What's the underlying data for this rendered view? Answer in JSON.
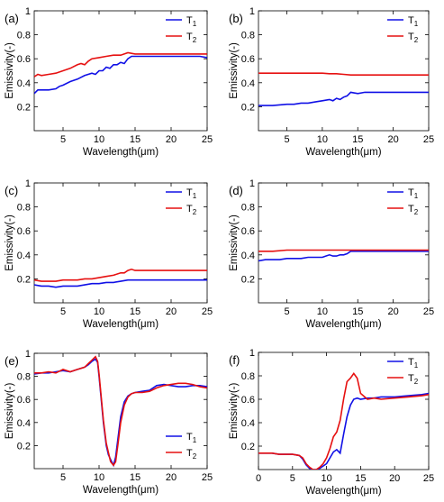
{
  "figure": {
    "x_label": "Wavelength(μm)",
    "y_label": "Emissivity(-)"
  },
  "colors": {
    "T1": "#1010e6",
    "T2": "#e61010"
  },
  "chart_data": [
    {
      "panel": "(a)",
      "type": "line",
      "xlim": [
        1,
        25
      ],
      "ylim": [
        0,
        1
      ],
      "xticks": [
        5,
        10,
        15,
        20,
        25
      ],
      "yticks": [
        0.2,
        0.4,
        0.6,
        0.8,
        1
      ],
      "xlabel": "Wavelength(μm)",
      "ylabel": "Emissivity(-)",
      "legend": "top-right",
      "series": [
        {
          "name": "T",
          "sub": "1",
          "color": "#1010e6",
          "x": [
            1,
            1.5,
            2,
            3,
            4,
            4.5,
            5,
            6,
            7,
            8,
            9,
            9.5,
            10,
            10.5,
            11,
            11.5,
            12,
            12.5,
            13,
            13.5,
            14,
            14.5,
            15,
            16,
            18,
            20,
            22,
            24,
            25
          ],
          "y": [
            0.31,
            0.34,
            0.34,
            0.34,
            0.35,
            0.37,
            0.38,
            0.41,
            0.43,
            0.46,
            0.48,
            0.47,
            0.5,
            0.5,
            0.53,
            0.52,
            0.55,
            0.55,
            0.57,
            0.56,
            0.6,
            0.62,
            0.62,
            0.62,
            0.62,
            0.62,
            0.62,
            0.62,
            0.61
          ]
        },
        {
          "name": "T",
          "sub": "2",
          "color": "#e61010",
          "x": [
            1,
            1.5,
            2,
            3,
            4,
            5,
            6,
            7,
            7.5,
            8,
            8.5,
            9,
            10,
            11,
            12,
            13,
            14,
            15,
            16,
            18,
            20,
            22,
            24,
            25
          ],
          "y": [
            0.45,
            0.47,
            0.46,
            0.47,
            0.48,
            0.5,
            0.52,
            0.55,
            0.56,
            0.55,
            0.58,
            0.6,
            0.61,
            0.62,
            0.63,
            0.63,
            0.65,
            0.64,
            0.64,
            0.64,
            0.64,
            0.64,
            0.64,
            0.64
          ]
        }
      ]
    },
    {
      "panel": "(b)",
      "type": "line",
      "xlim": [
        1,
        25
      ],
      "ylim": [
        0,
        1
      ],
      "xticks": [
        5,
        10,
        15,
        20,
        25
      ],
      "yticks": [
        0.2,
        0.4,
        0.6,
        0.8,
        1
      ],
      "xlabel": "Wavelength(μm)",
      "ylabel": "Emissivity(-)",
      "legend": "top-right",
      "series": [
        {
          "name": "T",
          "sub": "1",
          "color": "#1010e6",
          "x": [
            1,
            3,
            5,
            6,
            7,
            8,
            9,
            10,
            11,
            11.5,
            12,
            12.5,
            13,
            13.5,
            14,
            15,
            16,
            18,
            20,
            22,
            25
          ],
          "y": [
            0.21,
            0.21,
            0.22,
            0.22,
            0.23,
            0.23,
            0.24,
            0.25,
            0.26,
            0.25,
            0.27,
            0.26,
            0.28,
            0.29,
            0.32,
            0.31,
            0.32,
            0.32,
            0.32,
            0.32,
            0.32
          ]
        },
        {
          "name": "T",
          "sub": "2",
          "color": "#e61010",
          "x": [
            1,
            3,
            5,
            7,
            9,
            10,
            11,
            12,
            13,
            14,
            15,
            16,
            18,
            20,
            22,
            25
          ],
          "y": [
            0.48,
            0.48,
            0.48,
            0.48,
            0.48,
            0.48,
            0.475,
            0.475,
            0.47,
            0.465,
            0.465,
            0.465,
            0.465,
            0.465,
            0.465,
            0.465
          ]
        }
      ]
    },
    {
      "panel": "(c)",
      "type": "line",
      "xlim": [
        1,
        25
      ],
      "ylim": [
        0,
        1
      ],
      "xticks": [
        5,
        10,
        15,
        20,
        25
      ],
      "yticks": [
        0.2,
        0.4,
        0.6,
        0.8,
        1
      ],
      "xlabel": "Wavelength(μm)",
      "ylabel": "Emissivity(-)",
      "legend": "top-right",
      "series": [
        {
          "name": "T",
          "sub": "1",
          "color": "#1010e6",
          "x": [
            1,
            2,
            3,
            4,
            5,
            6,
            7,
            8,
            9,
            10,
            11,
            12,
            13,
            14,
            15,
            16,
            18,
            20,
            22,
            25
          ],
          "y": [
            0.15,
            0.14,
            0.14,
            0.13,
            0.14,
            0.14,
            0.14,
            0.15,
            0.16,
            0.16,
            0.17,
            0.17,
            0.18,
            0.19,
            0.19,
            0.19,
            0.19,
            0.19,
            0.19,
            0.19
          ]
        },
        {
          "name": "T",
          "sub": "2",
          "color": "#e61010",
          "x": [
            1,
            2,
            3,
            4,
            5,
            6,
            7,
            8,
            9,
            10,
            11,
            12,
            13,
            13.5,
            14,
            14.5,
            15,
            16,
            18,
            20,
            22,
            25
          ],
          "y": [
            0.19,
            0.18,
            0.18,
            0.18,
            0.19,
            0.19,
            0.19,
            0.2,
            0.2,
            0.21,
            0.22,
            0.23,
            0.25,
            0.25,
            0.27,
            0.28,
            0.27,
            0.27,
            0.27,
            0.27,
            0.27,
            0.27
          ]
        }
      ]
    },
    {
      "panel": "(d)",
      "type": "line",
      "xlim": [
        1,
        25
      ],
      "ylim": [
        0,
        1
      ],
      "xticks": [
        5,
        10,
        15,
        20,
        25
      ],
      "yticks": [
        0.2,
        0.4,
        0.6,
        0.8,
        1
      ],
      "xlabel": "Wavelength(μm)",
      "ylabel": "Emissivity(-)",
      "legend": "top-right",
      "series": [
        {
          "name": "T",
          "sub": "1",
          "color": "#1010e6",
          "x": [
            1,
            2,
            3,
            4,
            5,
            6,
            7,
            8,
            9,
            10,
            10.5,
            11,
            11.5,
            12,
            12.5,
            13,
            13.5,
            14,
            15,
            16,
            18,
            20,
            22,
            25
          ],
          "y": [
            0.35,
            0.36,
            0.36,
            0.36,
            0.37,
            0.37,
            0.37,
            0.38,
            0.38,
            0.38,
            0.39,
            0.4,
            0.39,
            0.39,
            0.4,
            0.4,
            0.41,
            0.43,
            0.43,
            0.43,
            0.43,
            0.43,
            0.43,
            0.43
          ]
        },
        {
          "name": "T",
          "sub": "2",
          "color": "#e61010",
          "x": [
            1,
            3,
            5,
            7,
            9,
            11,
            12,
            13,
            14,
            15,
            16,
            18,
            20,
            22,
            25
          ],
          "y": [
            0.43,
            0.43,
            0.44,
            0.44,
            0.44,
            0.44,
            0.44,
            0.44,
            0.44,
            0.44,
            0.44,
            0.44,
            0.44,
            0.44,
            0.44
          ]
        }
      ]
    },
    {
      "panel": "(e)",
      "type": "line",
      "xlim": [
        1,
        25
      ],
      "ylim": [
        0,
        1
      ],
      "xticks": [
        5,
        10,
        15,
        20,
        25
      ],
      "yticks": [
        0.2,
        0.4,
        0.6,
        0.8,
        1
      ],
      "xlabel": "Wavelength(μm)",
      "ylabel": "Emissivity(-)",
      "legend": "bottom-right",
      "series": [
        {
          "name": "T",
          "sub": "1",
          "color": "#1010e6",
          "x": [
            1,
            2,
            3,
            4,
            5,
            6,
            7,
            8,
            8.5,
            9,
            9.5,
            9.8,
            10,
            10.3,
            10.6,
            11,
            11.3,
            11.6,
            12,
            12.3,
            12.6,
            13,
            13.5,
            14,
            14.5,
            15,
            16,
            17,
            18,
            19,
            20,
            21,
            22,
            23,
            24,
            25
          ],
          "y": [
            0.82,
            0.83,
            0.83,
            0.84,
            0.85,
            0.84,
            0.86,
            0.88,
            0.9,
            0.93,
            0.95,
            0.92,
            0.8,
            0.6,
            0.4,
            0.2,
            0.12,
            0.08,
            0.03,
            0.1,
            0.25,
            0.45,
            0.58,
            0.63,
            0.65,
            0.66,
            0.67,
            0.68,
            0.72,
            0.73,
            0.72,
            0.71,
            0.71,
            0.72,
            0.72,
            0.71
          ]
        },
        {
          "name": "T",
          "sub": "2",
          "color": "#e61010",
          "x": [
            1,
            2,
            3,
            4,
            5,
            6,
            7,
            8,
            8.5,
            9,
            9.5,
            9.8,
            10,
            10.3,
            10.6,
            11,
            11.3,
            11.6,
            12,
            12.3,
            12.6,
            13,
            13.5,
            14,
            14.5,
            15,
            16,
            17,
            18,
            19,
            20,
            21,
            22,
            23,
            24,
            25
          ],
          "y": [
            0.83,
            0.83,
            0.84,
            0.83,
            0.86,
            0.84,
            0.86,
            0.88,
            0.91,
            0.94,
            0.97,
            0.93,
            0.82,
            0.62,
            0.42,
            0.22,
            0.14,
            0.06,
            0.03,
            0.06,
            0.2,
            0.4,
            0.55,
            0.62,
            0.65,
            0.66,
            0.66,
            0.67,
            0.7,
            0.72,
            0.73,
            0.74,
            0.74,
            0.73,
            0.71,
            0.7
          ]
        }
      ]
    },
    {
      "panel": "(f)",
      "type": "line",
      "xlim": [
        0,
        25
      ],
      "ylim": [
        0,
        1
      ],
      "xticks": [
        0,
        5,
        10,
        15,
        20,
        25
      ],
      "yticks": [
        0.2,
        0.4,
        0.6,
        0.8,
        1
      ],
      "xlabel": "Wavelength(μm)",
      "ylabel": "Emissivity(-)",
      "legend": "top-right",
      "series": [
        {
          "name": "T",
          "sub": "1",
          "color": "#1010e6",
          "x": [
            0,
            1,
            2,
            3,
            4,
            5,
            6,
            6.5,
            7,
            7.5,
            8,
            8.5,
            9,
            9.5,
            10,
            10.5,
            11,
            11.5,
            12,
            12.5,
            13,
            13.5,
            14,
            14.5,
            15,
            16,
            17,
            18,
            20,
            22,
            24,
            25
          ],
          "y": [
            0.14,
            0.14,
            0.14,
            0.13,
            0.13,
            0.13,
            0.12,
            0.09,
            0.04,
            0.01,
            0.0,
            0.0,
            0.01,
            0.03,
            0.05,
            0.1,
            0.15,
            0.17,
            0.14,
            0.3,
            0.45,
            0.55,
            0.6,
            0.61,
            0.6,
            0.61,
            0.61,
            0.62,
            0.62,
            0.63,
            0.64,
            0.65
          ]
        },
        {
          "name": "T",
          "sub": "2",
          "color": "#e61010",
          "x": [
            0,
            1,
            2,
            3,
            4,
            5,
            6,
            6.5,
            7,
            7.5,
            8,
            8.5,
            9,
            9.5,
            10,
            10.5,
            11,
            11.5,
            12,
            12.5,
            13,
            13.5,
            14,
            14.5,
            15,
            16,
            17,
            18,
            20,
            22,
            24,
            25
          ],
          "y": [
            0.14,
            0.14,
            0.14,
            0.13,
            0.13,
            0.13,
            0.12,
            0.1,
            0.05,
            0.02,
            0.0,
            0.0,
            0.02,
            0.05,
            0.1,
            0.18,
            0.28,
            0.32,
            0.42,
            0.6,
            0.75,
            0.78,
            0.82,
            0.78,
            0.65,
            0.6,
            0.61,
            0.6,
            0.61,
            0.62,
            0.63,
            0.64
          ]
        }
      ]
    }
  ]
}
